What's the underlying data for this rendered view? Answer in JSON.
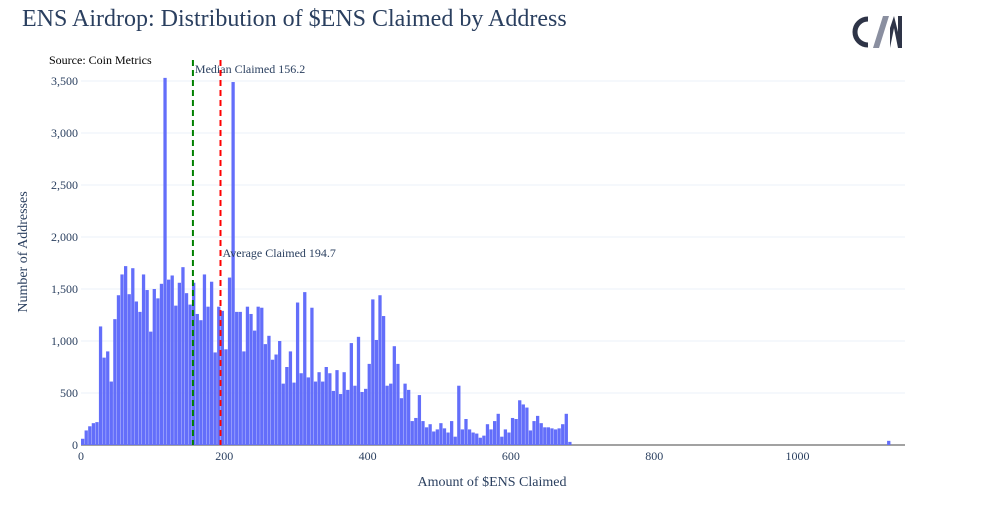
{
  "header": {
    "title": "ENS Airdrop: Distribution of $ENS Claimed by Address",
    "source": "Source: Coin Metrics",
    "logo_text": "CM"
  },
  "colors": {
    "bars": "#636efa",
    "median_line": "#008000",
    "average_line": "#ff0000",
    "grid": "#ebf0f8",
    "text": "#2a3f5f"
  },
  "chart_data": {
    "type": "bar",
    "title": "ENS Airdrop: Distribution of $ENS Claimed by Address",
    "xlabel": "Amount of $ENS Claimed",
    "ylabel": "Number of Addresses",
    "xlim": [
      0,
      1150
    ],
    "ylim": [
      0,
      3500
    ],
    "bin_width": 5,
    "x_ticks": [
      0,
      200,
      400,
      600,
      800,
      1000
    ],
    "x_tick_labels": [
      "0",
      "200",
      "400",
      "600",
      "800",
      "1000"
    ],
    "y_ticks": [
      0,
      500,
      1000,
      1500,
      2000,
      2500,
      3000,
      3500
    ],
    "y_tick_labels": [
      "0",
      "500",
      "1,000",
      "1,500",
      "2,000",
      "2,500",
      "3,000",
      "3,500"
    ],
    "grid": true,
    "legend": "none",
    "annotations": [
      {
        "label": "Median Claimed 156.2",
        "x": 156.2,
        "style": "dashed",
        "color": "#008000"
      },
      {
        "label": "Average Claimed 194.7",
        "x": 194.7,
        "style": "dashed",
        "color": "#ff0000"
      }
    ],
    "bin_starts": [
      0,
      5,
      10,
      15,
      20,
      25,
      30,
      35,
      40,
      45,
      50,
      55,
      60,
      65,
      70,
      75,
      80,
      85,
      90,
      95,
      100,
      105,
      110,
      115,
      120,
      125,
      130,
      135,
      140,
      145,
      150,
      155,
      160,
      165,
      170,
      175,
      180,
      185,
      190,
      195,
      200,
      205,
      210,
      215,
      220,
      225,
      230,
      235,
      240,
      245,
      250,
      255,
      260,
      265,
      270,
      275,
      280,
      285,
      290,
      295,
      300,
      305,
      310,
      315,
      320,
      325,
      330,
      335,
      340,
      345,
      350,
      355,
      360,
      365,
      370,
      375,
      380,
      385,
      390,
      395,
      400,
      405,
      410,
      415,
      420,
      425,
      430,
      435,
      440,
      445,
      450,
      455,
      460,
      465,
      470,
      475,
      480,
      485,
      490,
      495,
      500,
      505,
      510,
      515,
      520,
      525,
      530,
      535,
      540,
      545,
      550,
      555,
      560,
      565,
      570,
      575,
      580,
      585,
      590,
      595,
      600,
      605,
      610,
      615,
      620,
      625,
      630,
      635,
      640,
      645,
      650,
      655,
      660,
      665,
      670,
      675,
      680,
      685,
      690,
      695,
      700,
      705,
      710,
      715,
      720,
      725,
      730,
      735,
      740,
      745,
      750,
      755,
      760,
      765,
      770,
      775,
      780,
      785,
      790,
      795,
      800,
      805,
      810,
      815,
      820,
      825,
      830,
      835,
      840,
      845,
      850,
      855,
      860,
      865,
      870,
      875,
      880,
      885,
      890,
      895,
      900,
      905,
      910,
      915,
      920,
      925,
      930,
      935,
      940,
      945,
      950,
      955,
      960,
      965,
      970,
      975,
      980,
      985,
      990,
      995,
      1000,
      1005,
      1010,
      1015,
      1020,
      1025,
      1030,
      1035,
      1040,
      1045,
      1050,
      1055,
      1060,
      1065,
      1070,
      1075,
      1080,
      1085,
      1090,
      1095,
      1100,
      1105,
      1110,
      1115,
      1120,
      1125,
      1130,
      1135,
      1140,
      1145
    ],
    "values": [
      60,
      140,
      180,
      210,
      220,
      1140,
      840,
      900,
      610,
      1210,
      1440,
      1640,
      1720,
      1450,
      1700,
      1380,
      1280,
      1640,
      1490,
      1090,
      1500,
      1410,
      1550,
      3530,
      1590,
      1630,
      1340,
      1560,
      1710,
      1460,
      1350,
      1560,
      1260,
      1200,
      1640,
      1330,
      1570,
      890,
      1330,
      1290,
      920,
      1610,
      3490,
      1280,
      1280,
      900,
      1330,
      1260,
      1100,
      1330,
      1320,
      970,
      1050,
      820,
      870,
      1000,
      590,
      750,
      900,
      600,
      1370,
      690,
      1470,
      650,
      1320,
      610,
      700,
      610,
      750,
      690,
      520,
      720,
      490,
      700,
      530,
      980,
      570,
      1040,
      510,
      540,
      780,
      1400,
      1010,
      1440,
      1240,
      570,
      590,
      950,
      780,
      450,
      590,
      530,
      230,
      260,
      480,
      230,
      170,
      200,
      130,
      150,
      210,
      160,
      120,
      230,
      80,
      570,
      150,
      250,
      150,
      120,
      110,
      70,
      90,
      200,
      150,
      230,
      300,
      80,
      150,
      120,
      260,
      250,
      430,
      390,
      360,
      140,
      230,
      280,
      210,
      170,
      170,
      160,
      150,
      160,
      200,
      300,
      30,
      0,
      0,
      0,
      0,
      0,
      0,
      0,
      0,
      0,
      0,
      0,
      0,
      0,
      0,
      0,
      0,
      0,
      0,
      0,
      0,
      0,
      0,
      0,
      0,
      0,
      0,
      0,
      0,
      0,
      0,
      0,
      0,
      0,
      0,
      0,
      0,
      0,
      0,
      0,
      0,
      0,
      0,
      0,
      0,
      0,
      0,
      0,
      0,
      0,
      0,
      0,
      0,
      0,
      0,
      0,
      0,
      0,
      0,
      0,
      0,
      0,
      0,
      0,
      0,
      0,
      0,
      0,
      0,
      0,
      0,
      0,
      0,
      0,
      0,
      0,
      0,
      0,
      0,
      0,
      0,
      0,
      0,
      0,
      0,
      0,
      0,
      0,
      0,
      40
    ]
  }
}
